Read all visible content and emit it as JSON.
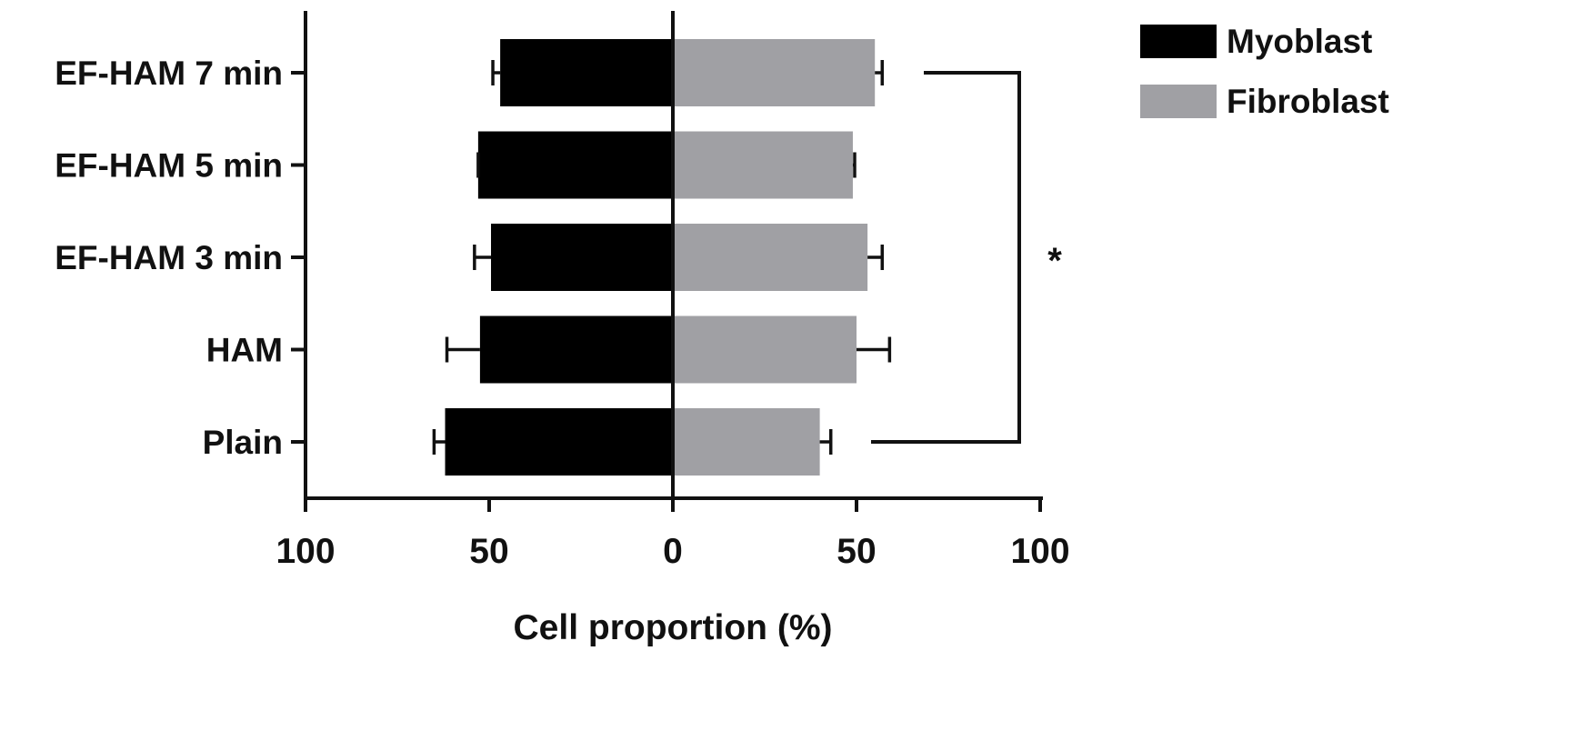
{
  "chart_data": {
    "type": "bar",
    "orientation": "horizontal-diverging",
    "categories": [
      "EF-HAM 7 min",
      "EF-HAM 5 min",
      "EF-HAM 3 min",
      "HAM",
      "Plain"
    ],
    "series": [
      {
        "name": "Myoblast",
        "color": "#000000",
        "direction": "left",
        "values": [
          47,
          53,
          49.5,
          52.5,
          62
        ],
        "errors": [
          2,
          0,
          4.5,
          9,
          3
        ]
      },
      {
        "name": "Fibroblast",
        "color": "#a0a0a4",
        "direction": "right",
        "values": [
          55,
          49,
          53,
          50,
          40
        ],
        "errors": [
          2,
          0.5,
          4,
          9,
          3
        ]
      }
    ],
    "xlabel": "Cell proportion (%)",
    "ylabel": "",
    "xlim": [
      -100,
      100
    ],
    "xticks": [
      -100,
      -50,
      0,
      50,
      100
    ],
    "xtick_labels": [
      "100",
      "50",
      "0",
      "50",
      "100"
    ],
    "legend": {
      "placement": "top-right",
      "entries": [
        "Myoblast",
        "Fibroblast"
      ]
    },
    "significance": {
      "from": "EF-HAM 7 min",
      "to": "Plain",
      "label": "*"
    },
    "grid": false
  }
}
